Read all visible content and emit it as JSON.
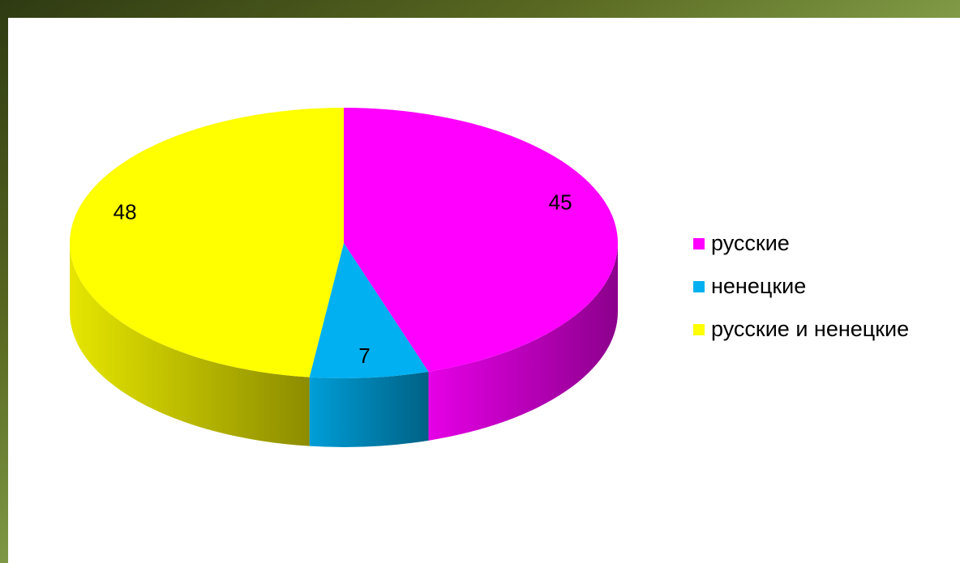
{
  "chart_data": {
    "type": "pie3d",
    "categories": [
      "русские",
      "ненецкие",
      "русские и ненецкие"
    ],
    "values": [
      45,
      7,
      48
    ],
    "colors": [
      "#ff00ff",
      "#00b0f0",
      "#ffff00"
    ],
    "legend": "right"
  }
}
